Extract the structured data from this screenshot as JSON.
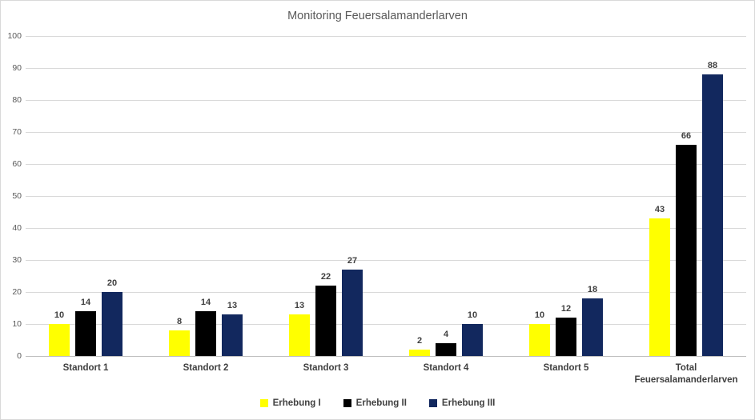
{
  "chart_data": {
    "type": "bar",
    "title": "Monitoring Feuersalamanderlarven",
    "categories": [
      "Standort 1",
      "Standort 2",
      "Standort 3",
      "Standort 4",
      "Standort 5",
      "Total Feuersalamanderlarven"
    ],
    "series": [
      {
        "name": "Erhebung I",
        "color": "#FFFF00",
        "values": [
          10,
          8,
          13,
          2,
          10,
          43
        ]
      },
      {
        "name": "Erhebung II",
        "color": "#000000",
        "values": [
          14,
          14,
          22,
          4,
          12,
          66
        ]
      },
      {
        "name": "Erhebung III",
        "color": "#12285E",
        "values": [
          20,
          13,
          27,
          10,
          18,
          88
        ]
      }
    ],
    "ylim": [
      0,
      100
    ],
    "ytick_step": 10,
    "ytick_labels": [
      "0",
      "10",
      "20",
      "30",
      "40",
      "50",
      "60",
      "70",
      "80",
      "90",
      "100"
    ],
    "grid": true,
    "legend_position": "bottom",
    "data_labels": true,
    "colors": {
      "title_text": "#595959",
      "axis_text": "#595959",
      "label_text": "#404040",
      "gridline": "#D9D9D9",
      "axis_line": "#BFBFBF",
      "chart_border": "#D9D9D9",
      "background": "#FFFFFF"
    }
  }
}
